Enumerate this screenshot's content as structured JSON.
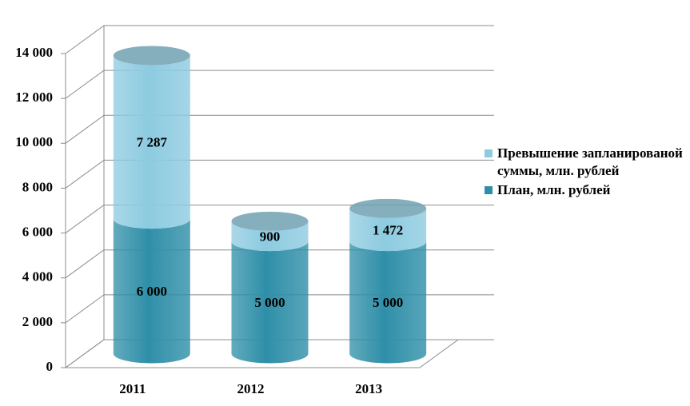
{
  "chart_data": {
    "type": "bar3d",
    "categories": [
      "2011",
      "2012",
      "2013"
    ],
    "series": [
      {
        "name": "План, млн. рублей",
        "color": "#2f8fa8",
        "values": [
          6000,
          5000,
          5000
        ],
        "value_labels": [
          "6 000",
          "5 000",
          "5 000"
        ]
      },
      {
        "name": "Превышение запланированой суммы, млн. рублей",
        "color": "#8dcbe0",
        "values": [
          7287,
          900,
          1472
        ],
        "value_labels": [
          "7 287",
          "900",
          "1 472"
        ]
      }
    ],
    "stacked": true,
    "ylim": [
      0,
      14000
    ],
    "yticks": [
      0,
      {
        "value": 2000,
        "label": "2 000"
      },
      {
        "value": 4000,
        "label": "4 000"
      },
      {
        "value": 6000,
        "label": "6 000"
      },
      {
        "value": 8000,
        "label": "8 000"
      },
      {
        "value": 10000,
        "label": "10 000"
      },
      {
        "value": 12000,
        "label": "12 000"
      },
      {
        "value": 14000,
        "label": "14 000"
      }
    ],
    "grid": true,
    "legend": "right"
  }
}
